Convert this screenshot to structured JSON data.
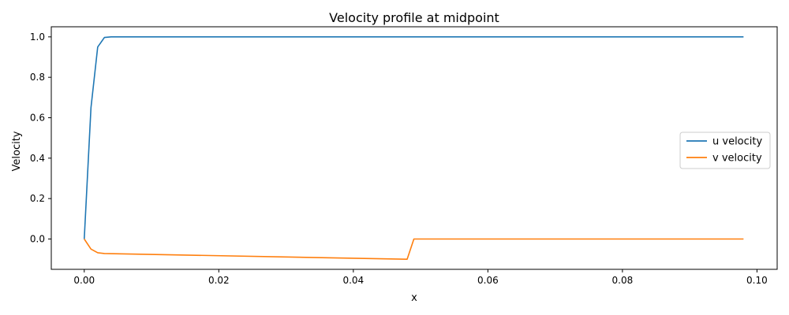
{
  "chart_data": {
    "type": "line",
    "title": "Velocity profile at midpoint",
    "xlabel": "x",
    "ylabel": "Velocity",
    "xlim": [
      -0.0049,
      0.103
    ],
    "ylim": [
      -0.15,
      1.05
    ],
    "xticks": [
      0.0,
      0.02,
      0.04,
      0.06,
      0.08,
      0.1
    ],
    "xtick_labels": [
      "0.00",
      "0.02",
      "0.04",
      "0.06",
      "0.08",
      "0.10"
    ],
    "yticks": [
      0.0,
      0.2,
      0.4,
      0.6,
      0.8,
      1.0
    ],
    "ytick_labels": [
      "0.0",
      "0.2",
      "0.4",
      "0.6",
      "0.8",
      "1.0"
    ],
    "grid": false,
    "legend_position": "center-right",
    "series": [
      {
        "name": "u velocity",
        "color": "#1f77b4",
        "x": [
          0.0,
          0.001,
          0.002,
          0.003,
          0.004,
          0.005,
          0.098
        ],
        "y": [
          0.0,
          0.65,
          0.95,
          0.997,
          1.0,
          1.0,
          1.0
        ]
      },
      {
        "name": "v velocity",
        "color": "#ff7f0e",
        "x": [
          0.0,
          0.001,
          0.002,
          0.003,
          0.048,
          0.049,
          0.098
        ],
        "y": [
          0.0,
          -0.05,
          -0.068,
          -0.072,
          -0.1,
          0.0,
          0.0
        ]
      }
    ]
  }
}
